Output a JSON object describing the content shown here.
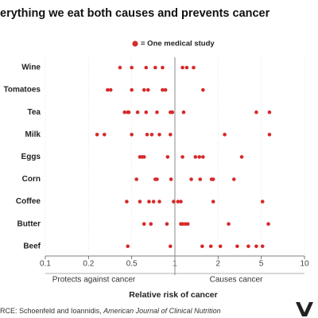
{
  "chart_data": {
    "type": "strip",
    "title": "erything we eat both causes and prevents cancer",
    "legend": "= One medical study",
    "x_label": "Relative risk of cancer",
    "left_label": "Protects against cancer",
    "right_label": "Causes cancer",
    "source": "RCE: Schoenfeld and Ioannidis, ",
    "source_journal": "American Journal of Clinical Nutrition",
    "scale": "log",
    "color": "#d62a2a",
    "grid": true,
    "reference_x": 1,
    "xlim": [
      0.1,
      10
    ],
    "xticks": [
      0.1,
      0.2,
      0.5,
      1,
      2,
      5,
      10
    ],
    "categories": [
      "Wine",
      "Tomatoes",
      "Tea",
      "Milk",
      "Eggs",
      "Corn",
      "Coffee",
      "Butter",
      "Beef"
    ],
    "values": [
      [
        0.39,
        0.5,
        0.63,
        0.73,
        0.82,
        1.13,
        1.21,
        1.35
      ],
      [
        0.3,
        0.32,
        0.5,
        0.61,
        0.65,
        0.82,
        0.86,
        1.57
      ],
      [
        0.43,
        0.46,
        0.47,
        0.55,
        0.63,
        0.75,
        0.93,
        0.96,
        1.15,
        4.5,
        5.7
      ],
      [
        0.24,
        0.28,
        0.5,
        0.64,
        0.69,
        0.78,
        0.93,
        2.3,
        5.7
      ],
      [
        0.57,
        0.59,
        0.61,
        0.89,
        1.13,
        1.39,
        1.48,
        1.57,
        3.3
      ],
      [
        0.54,
        0.73,
        0.75,
        0.94,
        1.3,
        1.5,
        1.8,
        1.85,
        2.8
      ],
      [
        0.45,
        0.57,
        0.66,
        0.71,
        0.78,
        0.98,
        1.05,
        1.1,
        1.85,
        5.1
      ],
      [
        0.61,
        0.68,
        0.88,
        1.1,
        1.13,
        1.18,
        1.23,
        2.5,
        5.6
      ],
      [
        0.46,
        0.93,
        1.55,
        1.78,
        2.1,
        3.0,
        3.8,
        4.5,
        5.1
      ]
    ]
  }
}
